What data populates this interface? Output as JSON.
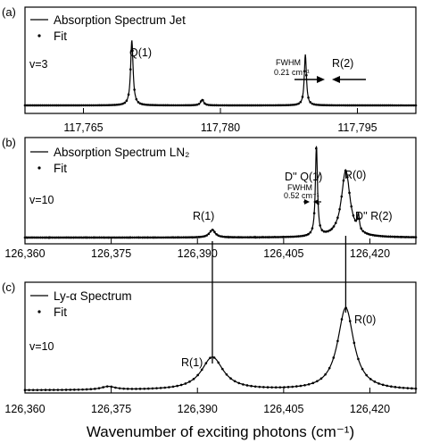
{
  "xlabel": "Wavenumber of exciting photons (cm⁻¹)",
  "chart_data": [
    {
      "type": "line",
      "panel_label": "(a)",
      "legend": [
        "Absorption Spectrum Jet",
        "Fit"
      ],
      "nu_label": "v=3",
      "xlim": [
        117758.6,
        117801.4
      ],
      "ticks": [
        117765,
        117780,
        117795
      ],
      "tick_labels": [
        "117,765",
        "117,780",
        "117,795"
      ],
      "peaks": [
        {
          "label": "Q(1)",
          "x": 117770.3,
          "height": 1.0,
          "width": 0.16
        },
        {
          "label": "",
          "x": 117778.0,
          "height": 0.09,
          "width": 0.2
        },
        {
          "label": "R(2)",
          "x": 117789.3,
          "height": 0.78,
          "width": 0.14
        }
      ],
      "fwhm_label": "FWHM",
      "fwhm_value": "0.21 cm⁻¹"
    },
    {
      "type": "line",
      "panel_label": "(b)",
      "legend": [
        "Absorption Spectrum LN₂",
        "Fit"
      ],
      "nu_label": "v=10",
      "xlim": [
        126360,
        126428
      ],
      "ticks": [
        126360,
        126375,
        126390,
        126405,
        126420
      ],
      "tick_labels": [
        "126,360",
        "126,375",
        "126,390",
        "126,405",
        "126,420"
      ],
      "peaks": [
        {
          "label": "R(1)",
          "x": 126392.6,
          "height": 0.09,
          "width": 0.6
        },
        {
          "label": "D'' Q(1)",
          "x": 126410.7,
          "height": 1.05,
          "width": 0.22
        },
        {
          "label": "R(0)",
          "x": 126415.8,
          "height": 0.78,
          "width": 0.9
        },
        {
          "label": "D'' R(2)",
          "x": 126418.0,
          "height": 0.18,
          "width": 0.2
        }
      ],
      "fwhm_label": "FWHM",
      "fwhm_value": "0.52 cm⁻¹"
    },
    {
      "type": "line",
      "panel_label": "(c)",
      "legend": [
        "Ly-α Spectrum",
        "Fit"
      ],
      "nu_label": "v=10",
      "xlim": [
        126360,
        126428
      ],
      "ticks": [
        126360,
        126375,
        126390,
        126405,
        126420
      ],
      "tick_labels": [
        "126,360",
        "126,375",
        "126,390",
        "126,405",
        "126,420"
      ],
      "peaks": [
        {
          "label": "",
          "x": 126374.5,
          "height": 0.04,
          "width": 1.5
        },
        {
          "label": "R(1)",
          "x": 126392.6,
          "height": 0.4,
          "width": 2.3
        },
        {
          "label": "R(0)",
          "x": 126415.8,
          "height": 1.0,
          "width": 1.7
        }
      ]
    }
  ]
}
